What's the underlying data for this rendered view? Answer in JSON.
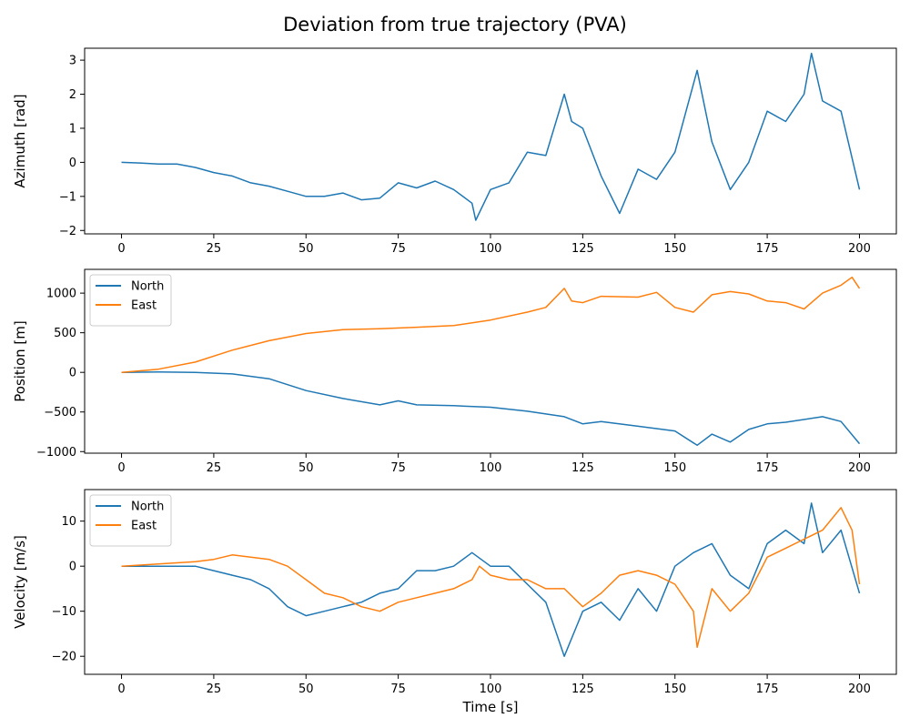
{
  "figure_title": "Deviation from true trajectory (PVA)",
  "chart_data": [
    {
      "type": "line",
      "title": "",
      "xlabel": "",
      "ylabel": "Azimuth [rad]",
      "xlim": [
        -10,
        210
      ],
      "ylim": [
        -2.1,
        3.35
      ],
      "xticks": [
        0,
        25,
        50,
        75,
        100,
        125,
        150,
        175,
        200
      ],
      "yticks": [
        -2,
        -1,
        0,
        1,
        2,
        3
      ],
      "grid": false,
      "legend": null,
      "series": [
        {
          "name": "",
          "color": "#1f77b4",
          "x": [
            0,
            5,
            10,
            15,
            20,
            25,
            30,
            35,
            40,
            45,
            50,
            55,
            60,
            65,
            70,
            75,
            80,
            85,
            90,
            95,
            96,
            100,
            105,
            110,
            115,
            120,
            122,
            125,
            130,
            135,
            140,
            145,
            150,
            153,
            156,
            160,
            165,
            170,
            175,
            180,
            185,
            187,
            190,
            195,
            200
          ],
          "y": [
            0.0,
            -0.02,
            -0.05,
            -0.05,
            -0.15,
            -0.3,
            -0.4,
            -0.6,
            -0.7,
            -0.85,
            -1.0,
            -1.0,
            -0.9,
            -1.1,
            -1.05,
            -0.6,
            -0.75,
            -0.55,
            -0.8,
            -1.2,
            -1.7,
            -0.8,
            -0.6,
            0.3,
            0.2,
            2.0,
            1.2,
            1.0,
            -0.4,
            -1.5,
            -0.2,
            -0.5,
            0.3,
            1.5,
            2.7,
            0.6,
            -0.8,
            0.0,
            1.5,
            1.2,
            2.0,
            3.2,
            1.8,
            1.5,
            -0.8
          ]
        }
      ]
    },
    {
      "type": "line",
      "title": "",
      "xlabel": "",
      "ylabel": "Position [m]",
      "xlim": [
        -10,
        210
      ],
      "ylim": [
        -1020,
        1300
      ],
      "xticks": [
        0,
        25,
        50,
        75,
        100,
        125,
        150,
        175,
        200
      ],
      "yticks": [
        -1000,
        -500,
        0,
        500,
        1000
      ],
      "grid": false,
      "legend": "upper-left",
      "series": [
        {
          "name": "North",
          "color": "#1f77b4",
          "x": [
            0,
            10,
            20,
            30,
            40,
            50,
            60,
            70,
            75,
            80,
            90,
            100,
            110,
            120,
            125,
            130,
            140,
            150,
            156,
            160,
            165,
            170,
            175,
            180,
            190,
            195,
            200
          ],
          "y": [
            0,
            5,
            0,
            -20,
            -80,
            -230,
            -330,
            -410,
            -360,
            -410,
            -420,
            -440,
            -490,
            -560,
            -650,
            -620,
            -680,
            -740,
            -920,
            -780,
            -880,
            -720,
            -650,
            -630,
            -560,
            -620,
            -900
          ]
        },
        {
          "name": "East",
          "color": "#ff7f0e",
          "x": [
            0,
            10,
            20,
            30,
            40,
            50,
            60,
            70,
            80,
            90,
            100,
            110,
            115,
            120,
            122,
            125,
            130,
            140,
            145,
            150,
            155,
            160,
            165,
            170,
            175,
            180,
            185,
            190,
            195,
            198,
            200
          ],
          "y": [
            0,
            40,
            130,
            280,
            400,
            490,
            540,
            550,
            570,
            590,
            660,
            760,
            820,
            1060,
            900,
            880,
            960,
            950,
            1010,
            820,
            760,
            980,
            1020,
            990,
            900,
            880,
            800,
            1000,
            1100,
            1200,
            1060
          ]
        }
      ]
    },
    {
      "type": "line",
      "title": "",
      "xlabel": "Time [s]",
      "ylabel": "Velocity [m/s]",
      "xlim": [
        -10,
        210
      ],
      "ylim": [
        -24,
        17
      ],
      "xticks": [
        0,
        25,
        50,
        75,
        100,
        125,
        150,
        175,
        200
      ],
      "yticks": [
        -20,
        -10,
        0,
        10
      ],
      "grid": false,
      "legend": "upper-left",
      "series": [
        {
          "name": "North",
          "color": "#1f77b4",
          "x": [
            0,
            10,
            20,
            25,
            30,
            35,
            40,
            45,
            50,
            55,
            60,
            65,
            70,
            75,
            80,
            85,
            90,
            95,
            100,
            105,
            110,
            115,
            120,
            125,
            130,
            135,
            140,
            145,
            150,
            155,
            160,
            165,
            170,
            175,
            180,
            185,
            187,
            190,
            195,
            200
          ],
          "y": [
            0,
            0,
            0,
            -1,
            -2,
            -3,
            -5,
            -9,
            -11,
            -10,
            -9,
            -8,
            -6,
            -5,
            -1,
            -1,
            0,
            3,
            0,
            0,
            -4,
            -8,
            -20,
            -10,
            -8,
            -12,
            -5,
            -10,
            0,
            3,
            5,
            -2,
            -5,
            5,
            8,
            5,
            14,
            3,
            8,
            -6
          ]
        },
        {
          "name": "East",
          "color": "#ff7f0e",
          "x": [
            0,
            10,
            20,
            25,
            30,
            35,
            40,
            45,
            50,
            55,
            60,
            65,
            70,
            75,
            80,
            85,
            90,
            95,
            97,
            100,
            105,
            110,
            115,
            120,
            125,
            130,
            135,
            140,
            145,
            150,
            155,
            156,
            160,
            165,
            170,
            175,
            180,
            185,
            190,
            195,
            198,
            200
          ],
          "y": [
            0,
            0.5,
            1,
            1.5,
            2.5,
            2,
            1.5,
            0,
            -3,
            -6,
            -7,
            -9,
            -10,
            -8,
            -7,
            -6,
            -5,
            -3,
            0,
            -2,
            -3,
            -3,
            -5,
            -5,
            -9,
            -6,
            -2,
            -1,
            -2,
            -4,
            -10,
            -18,
            -5,
            -10,
            -6,
            2,
            4,
            6,
            8,
            13,
            8,
            -4
          ]
        }
      ]
    }
  ]
}
